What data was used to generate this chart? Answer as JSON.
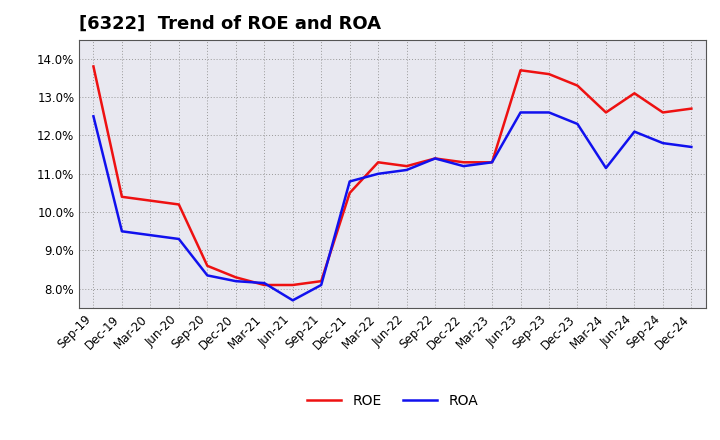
{
  "title": "[6322]  Trend of ROE and ROA",
  "x_labels": [
    "Sep-19",
    "Dec-19",
    "Mar-20",
    "Jun-20",
    "Sep-20",
    "Dec-20",
    "Mar-21",
    "Jun-21",
    "Sep-21",
    "Dec-21",
    "Mar-22",
    "Jun-22",
    "Sep-22",
    "Dec-22",
    "Mar-23",
    "Jun-23",
    "Sep-23",
    "Dec-23",
    "Mar-24",
    "Jun-24",
    "Sep-24",
    "Dec-24"
  ],
  "ROE": [
    13.8,
    10.4,
    10.3,
    10.2,
    8.6,
    8.3,
    8.1,
    8.1,
    8.2,
    10.5,
    11.3,
    11.2,
    11.4,
    11.3,
    11.3,
    13.7,
    13.6,
    13.3,
    12.6,
    13.1,
    12.6,
    12.7
  ],
  "ROA": [
    12.5,
    9.5,
    9.4,
    9.3,
    8.35,
    8.2,
    8.15,
    7.7,
    8.1,
    10.8,
    11.0,
    11.1,
    11.4,
    11.2,
    11.3,
    12.6,
    12.6,
    12.3,
    11.15,
    12.1,
    11.8,
    11.7
  ],
  "ROE_color": "#ee1111",
  "ROA_color": "#1111ee",
  "bg_color": "#ffffff",
  "plot_bg_color": "#e8e8f0",
  "grid_color": "#999999",
  "ylim": [
    7.5,
    14.5
  ],
  "yticks": [
    8.0,
    9.0,
    10.0,
    11.0,
    12.0,
    13.0,
    14.0
  ],
  "line_width": 1.8,
  "title_fontsize": 13,
  "legend_fontsize": 10,
  "tick_fontsize": 8.5
}
